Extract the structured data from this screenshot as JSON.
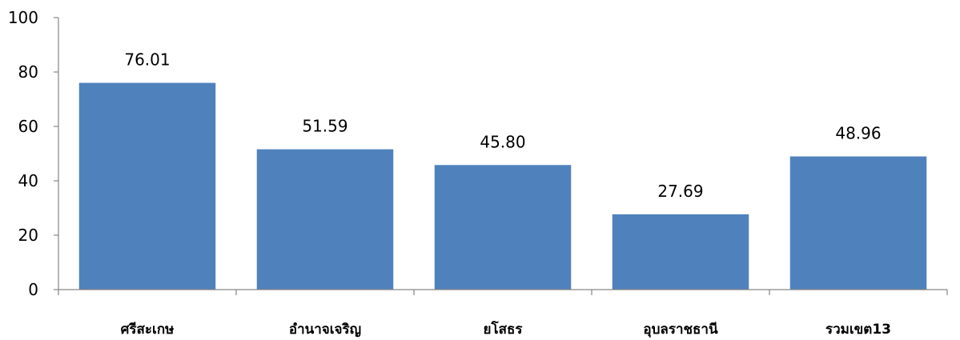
{
  "chart_data": {
    "type": "bar",
    "title": "",
    "xlabel": "",
    "ylabel": "",
    "categories": [
      "ศรีสะเกษ",
      "อำนาจเจริญ",
      "ยโสธร",
      "อุบลราชธานี",
      "รวมเขต13"
    ],
    "values": [
      76.01,
      51.59,
      45.8,
      27.69,
      48.96
    ],
    "data_labels": [
      "76.01",
      "51.59",
      "45.80",
      "27.69",
      "48.96"
    ],
    "ylim": [
      0,
      100
    ],
    "yticks": [
      0,
      20,
      40,
      60,
      80,
      100
    ],
    "ytick_labels": [
      "0",
      "20",
      "40",
      "60",
      "80",
      "100"
    ],
    "grid": false,
    "legend": "none",
    "bar_color": "#4F81BD",
    "axis_color": "#868686"
  }
}
